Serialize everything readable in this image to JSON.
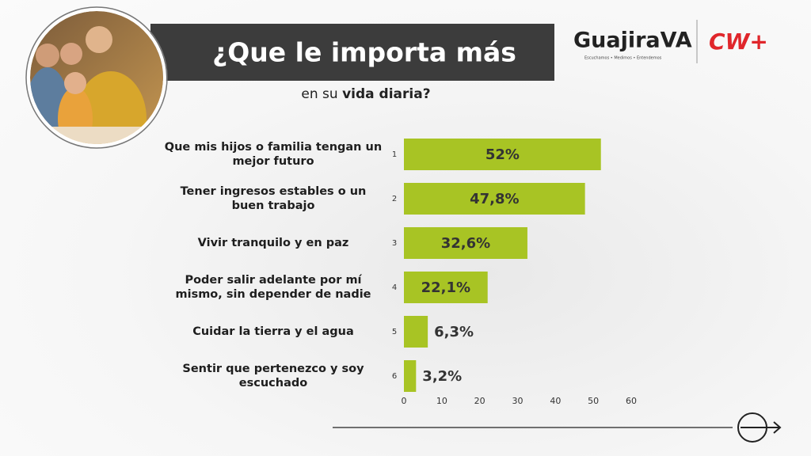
{
  "chart_data": {
    "type": "barh",
    "title": "¿Que le importa más",
    "subtitle": [
      "en su",
      "vida diaria?"
    ],
    "categories": [
      "Que mis hijos o familia tengan un mejor futuro",
      "Tener ingresos estables o un buen trabajo",
      "Vivir tranquilo y en paz",
      "Poder salir adelante por mí mismo, sin depender de nadie",
      "Cuidar la tierra y el agua",
      "Sentir que pertenezco y soy escuchado"
    ],
    "ranks": [
      "1",
      "2",
      "3",
      "4",
      "5",
      "6"
    ],
    "values": [
      52,
      47.8,
      32.6,
      22.1,
      6.3,
      3.2
    ],
    "value_labels": [
      "52%",
      "47,8%",
      "32,6%",
      "22,1%",
      "6,3%",
      "3,2%"
    ],
    "color": "#a8c424",
    "xlim": [
      0,
      60
    ],
    "xticks": [
      0,
      10,
      20,
      30,
      40,
      50,
      60
    ],
    "grid": false
  },
  "logos": {
    "brand": "GuajiraVA",
    "tagline": "Escuchamos • Medimos • Entendemos",
    "partner": "CW+"
  }
}
